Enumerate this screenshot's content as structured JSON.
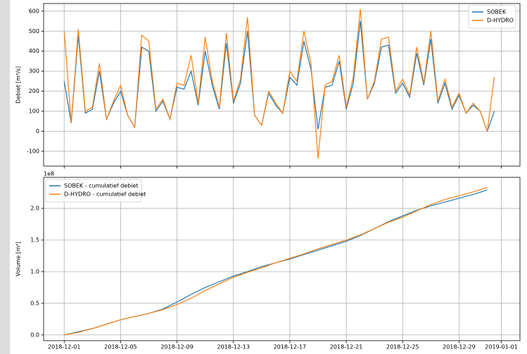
{
  "chart_data": [
    {
      "type": "line",
      "ylabel": "Debiet [m³/s]",
      "grid": true,
      "legend": "upper right",
      "ylim": [
        -174,
        638
      ],
      "yticks": [
        -100,
        0,
        100,
        200,
        300,
        400,
        500,
        600
      ],
      "x": [
        "2018-12-01T00:00",
        "2018-12-01T12:00",
        "2018-12-02T00:00",
        "2018-12-02T12:00",
        "2018-12-03T00:00",
        "2018-12-03T12:00",
        "2018-12-04T00:00",
        "2018-12-04T12:00",
        "2018-12-05T00:00",
        "2018-12-05T12:00",
        "2018-12-06T00:00",
        "2018-12-06T12:00",
        "2018-12-07T00:00",
        "2018-12-07T12:00",
        "2018-12-08T00:00",
        "2018-12-08T12:00",
        "2018-12-09T00:00",
        "2018-12-09T12:00",
        "2018-12-10T00:00",
        "2018-12-10T12:00",
        "2018-12-11T00:00",
        "2018-12-11T12:00",
        "2018-12-12T00:00",
        "2018-12-12T12:00",
        "2018-12-13T00:00",
        "2018-12-13T12:00",
        "2018-12-14T00:00",
        "2018-12-14T12:00",
        "2018-12-15T00:00",
        "2018-12-15T12:00",
        "2018-12-16T00:00",
        "2018-12-16T12:00",
        "2018-12-17T00:00",
        "2018-12-17T12:00",
        "2018-12-18T00:00",
        "2018-12-18T12:00",
        "2018-12-19T00:00",
        "2018-12-19T12:00",
        "2018-12-20T00:00",
        "2018-12-20T12:00",
        "2018-12-21T00:00",
        "2018-12-21T12:00",
        "2018-12-22T00:00",
        "2018-12-22T12:00",
        "2018-12-23T00:00",
        "2018-12-23T12:00",
        "2018-12-24T00:00",
        "2018-12-24T12:00",
        "2018-12-25T00:00",
        "2018-12-25T12:00",
        "2018-12-26T00:00",
        "2018-12-26T12:00",
        "2018-12-27T00:00",
        "2018-12-27T12:00",
        "2018-12-28T00:00",
        "2018-12-28T12:00",
        "2018-12-29T00:00",
        "2018-12-29T12:00",
        "2018-12-30T00:00",
        "2018-12-30T12:00",
        "2018-12-31T00:00",
        "2018-12-31T12:00"
      ],
      "series": [
        {
          "name": "SOBEK",
          "color": "#1f77b4",
          "values": [
            250,
            40,
            480,
            90,
            110,
            300,
            60,
            140,
            200,
            80,
            20,
            420,
            400,
            100,
            150,
            60,
            220,
            210,
            300,
            130,
            400,
            230,
            110,
            440,
            140,
            240,
            500,
            80,
            30,
            190,
            130,
            90,
            270,
            230,
            450,
            310,
            10,
            220,
            230,
            350,
            110,
            240,
            550,
            160,
            240,
            420,
            430,
            190,
            240,
            170,
            390,
            230,
            460,
            140,
            240,
            110,
            180,
            90,
            130,
            100,
            0,
            100
          ]
        },
        {
          "name": "D-HYDRO",
          "color": "#ff7f0e",
          "values": [
            500,
            40,
            510,
            100,
            120,
            340,
            60,
            150,
            230,
            80,
            20,
            480,
            450,
            110,
            160,
            60,
            240,
            230,
            380,
            140,
            470,
            250,
            120,
            490,
            150,
            260,
            570,
            80,
            30,
            200,
            140,
            90,
            300,
            250,
            500,
            340,
            -135,
            230,
            250,
            380,
            120,
            270,
            610,
            160,
            250,
            460,
            470,
            200,
            260,
            180,
            420,
            240,
            500,
            150,
            260,
            120,
            190,
            90,
            140,
            100,
            0,
            270
          ]
        }
      ]
    },
    {
      "type": "line",
      "ylabel": "Volume [m³]",
      "offset_label": "1e8",
      "grid": true,
      "legend": "upper left",
      "ylim": [
        -0.09,
        2.49
      ],
      "yticks": [
        {
          "value": 0,
          "label": "0.0"
        },
        0.5,
        {
          "value": 1,
          "label": "1.0"
        },
        1.5,
        {
          "value": 2,
          "label": "2.0"
        }
      ],
      "xlim": [
        "2018-11-29T13:00",
        "2019-01-02T07:40"
      ],
      "xticks": [
        "2018-12-01",
        "2018-12-05",
        "2018-12-09",
        "2018-12-13",
        "2018-12-17",
        "2018-12-21",
        "2018-12-25",
        "2018-12-29",
        "2019-01-01"
      ],
      "x": [
        "2018-12-01",
        "2018-12-02",
        "2018-12-03",
        "2018-12-04",
        "2018-12-05",
        "2018-12-06",
        "2018-12-07",
        "2018-12-08",
        "2018-12-09",
        "2018-12-10",
        "2018-12-11",
        "2018-12-12",
        "2018-12-13",
        "2018-12-14",
        "2018-12-15",
        "2018-12-16",
        "2018-12-17",
        "2018-12-18",
        "2018-12-19",
        "2018-12-20",
        "2018-12-21",
        "2018-12-22",
        "2018-12-23",
        "2018-12-24",
        "2018-12-25",
        "2018-12-26",
        "2018-12-27",
        "2018-12-28",
        "2018-12-29",
        "2018-12-30",
        "2018-12-31"
      ],
      "series": [
        {
          "name": "SOBEK - cumulatief debiet",
          "color": "#1f77b4",
          "values": [
            0,
            0.05,
            0.1,
            0.17,
            0.24,
            0.29,
            0.34,
            0.41,
            0.52,
            0.64,
            0.75,
            0.84,
            0.93,
            1.0,
            1.08,
            1.14,
            1.2,
            1.27,
            1.34,
            1.41,
            1.48,
            1.57,
            1.68,
            1.79,
            1.88,
            1.97,
            2.04,
            2.1,
            2.16,
            2.22,
            2.29
          ]
        },
        {
          "name": "D-HYDRO - cumulatief debiet",
          "color": "#ff7f0e",
          "values": [
            0,
            0.04,
            0.1,
            0.17,
            0.24,
            0.29,
            0.34,
            0.4,
            0.48,
            0.58,
            0.7,
            0.81,
            0.91,
            0.99,
            1.06,
            1.14,
            1.21,
            1.28,
            1.36,
            1.43,
            1.5,
            1.58,
            1.68,
            1.78,
            1.86,
            1.96,
            2.06,
            2.14,
            2.2,
            2.26,
            2.33
          ]
        }
      ]
    }
  ]
}
